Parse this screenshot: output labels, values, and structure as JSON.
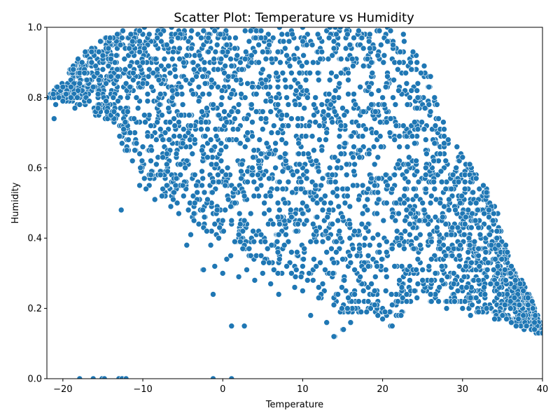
{
  "chart_data": {
    "type": "scatter",
    "title": "Scatter Plot: Temperature vs Humidity",
    "xlabel": "Temperature",
    "ylabel": "Humidity",
    "xlim": [
      -22,
      40
    ],
    "ylim": [
      0.0,
      1.0
    ],
    "xticks": [
      -20,
      -10,
      0,
      10,
      20,
      30,
      40
    ],
    "yticks": [
      0.0,
      0.2,
      0.4,
      0.6,
      0.8,
      1.0
    ],
    "grid": false,
    "marker_color": "#1f77b4",
    "marker_edge": "#ffffff",
    "series": [
      {
        "x": [
          -22,
          -21.1,
          -20.9,
          -20.5,
          -20,
          -19.6,
          -19,
          -18.5,
          -18.2,
          -17.6,
          -17.3,
          -17,
          -16.7,
          -16.2,
          -15.6,
          -15,
          -14.6,
          -14,
          -13.6,
          -13.2,
          -12.9,
          -12.7,
          -12.2,
          -11.6,
          -11,
          -10.4,
          -10,
          -9.6,
          -9,
          -8.5,
          -8,
          -7.5,
          -7,
          -6.5,
          -6,
          -5.5,
          -5,
          -4.5,
          -4,
          -3.5,
          -3,
          -2.5,
          -2,
          -1.5,
          -1,
          -0.5,
          0,
          0.5,
          1,
          1.5,
          2,
          2.5,
          3,
          3.5,
          4,
          5,
          6,
          7,
          8,
          9,
          10,
          11,
          12,
          13,
          14,
          15,
          16,
          17,
          18,
          19,
          20,
          21,
          22,
          23,
          24,
          25,
          26,
          27,
          28,
          29,
          30,
          31,
          32,
          33,
          34,
          35,
          36,
          37,
          38,
          39,
          40,
          -17.9,
          -16.2,
          -15.1,
          -14.8,
          -13,
          -12.6,
          -12.1,
          -1.2,
          1.1,
          1.1,
          2.7,
          -1.2,
          -2.4,
          13.9,
          15.1,
          21.2,
          22.3
        ],
        "y": [
          0.8,
          0.74,
          0.78,
          0.8,
          0.79,
          0.81,
          0.8,
          0.77,
          0.8,
          0.9,
          0.87,
          0.85,
          0.79,
          0.83,
          0.81,
          0.92,
          0.79,
          0.91,
          0.76,
          0.88,
          0.69,
          0.48,
          0.73,
          0.7,
          0.65,
          0.55,
          0.9,
          0.54,
          0.62,
          0.51,
          0.85,
          0.68,
          0.95,
          0.49,
          0.72,
          0.47,
          0.55,
          0.38,
          0.41,
          0.5,
          0.44,
          0.31,
          0.42,
          0.38,
          0.32,
          0.4,
          0.3,
          0.34,
          0.35,
          0.39,
          0.29,
          0.37,
          0.31,
          0.35,
          0.28,
          0.3,
          0.27,
          0.24,
          0.32,
          0.26,
          0.25,
          0.18,
          0.23,
          0.16,
          0.12,
          0.14,
          0.16,
          0.22,
          0.19,
          0.21,
          0.17,
          0.15,
          0.18,
          0.22,
          0.25,
          0.28,
          0.24,
          0.22,
          0.2,
          0.22,
          0.2,
          0.18,
          0.19,
          0.2,
          0.17,
          0.18,
          0.2,
          0.17,
          0.15,
          0.14,
          0.13,
          0.0,
          0.0,
          0.0,
          0.0,
          0.0,
          0.0,
          0.0,
          0.0,
          0.0,
          0.15,
          0.15,
          0.24,
          0.31,
          0.12,
          0.14,
          0.15,
          0.18
        ]
      }
    ],
    "envelope": {
      "x": [
        -22,
        -18,
        -14,
        -10,
        -8,
        -6,
        -4,
        -2,
        0,
        2,
        4,
        6,
        8,
        10,
        12,
        14,
        16,
        18,
        20,
        22,
        24,
        26,
        28,
        30,
        32,
        34,
        36,
        38,
        40
      ],
      "upper": [
        0.8,
        0.91,
        0.99,
        1.0,
        1.0,
        1.0,
        1.0,
        1.0,
        1.0,
        1.0,
        1.0,
        1.0,
        1.0,
        1.0,
        1.0,
        1.0,
        1.0,
        1.0,
        1.0,
        1.0,
        0.94,
        0.86,
        0.7,
        0.64,
        0.58,
        0.5,
        0.33,
        0.26,
        0.15
      ],
      "lower": [
        0.8,
        0.78,
        0.73,
        0.56,
        0.52,
        0.5,
        0.45,
        0.42,
        0.4,
        0.38,
        0.33,
        0.3,
        0.3,
        0.26,
        0.23,
        0.2,
        0.17,
        0.19,
        0.18,
        0.17,
        0.22,
        0.22,
        0.21,
        0.2,
        0.18,
        0.17,
        0.16,
        0.14,
        0.13
      ]
    }
  }
}
